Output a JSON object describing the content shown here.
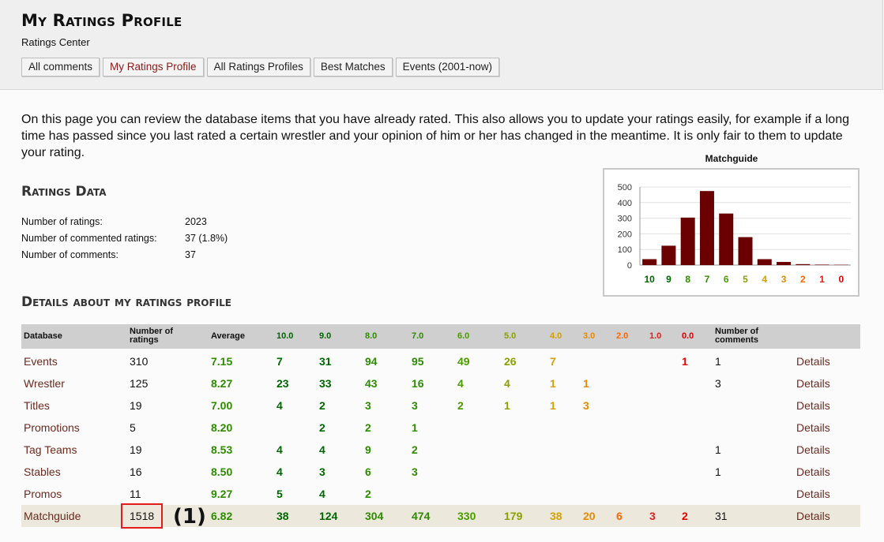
{
  "page": {
    "title": "My Ratings Profile",
    "subtitle": "Ratings Center",
    "tabs": [
      {
        "label": "All comments",
        "active": false
      },
      {
        "label": "My Ratings Profile",
        "active": true
      },
      {
        "label": "All Ratings Profiles",
        "active": false
      },
      {
        "label": "Best Matches",
        "active": false
      },
      {
        "label": "Events (2001-now)",
        "active": false
      }
    ]
  },
  "intro": "On this page you can review the database items that you have already rated. This also allows you to update your ratings easily, for example if a long time has passed since you last rated a certain wrestler and your opinion of him or her has changed in the meantime. It is only fair to them to update your rating.",
  "ratings_data": {
    "title": "Ratings Data",
    "rows": [
      {
        "label": "Number of ratings:",
        "value": "2023"
      },
      {
        "label": "Number of commented ratings:",
        "value": "37 (1.8%)"
      },
      {
        "label": "Number of comments:",
        "value": "37"
      }
    ]
  },
  "chart_data": {
    "type": "bar",
    "title": "Matchguide",
    "categories": [
      "10",
      "9",
      "8",
      "7",
      "6",
      "5",
      "4",
      "3",
      "2",
      "1",
      "0"
    ],
    "values": [
      38,
      124,
      304,
      474,
      330,
      179,
      38,
      20,
      6,
      3,
      2
    ],
    "category_colors": [
      "#006600",
      "#006600",
      "#2e8b00",
      "#2e8b00",
      "#4a9a00",
      "#8aa000",
      "#d4a000",
      "#e68a00",
      "#ff6600",
      "#e02020",
      "#e00000"
    ],
    "bar_color": "#6b0000",
    "ylim": [
      0,
      500
    ],
    "yticks": [
      0,
      100,
      200,
      300,
      400,
      500
    ],
    "grid": true,
    "xlabel": "",
    "ylabel": ""
  },
  "details": {
    "title": "Details about my ratings profile",
    "headers": {
      "database": "Database",
      "num_ratings": [
        "Number of",
        "ratings"
      ],
      "average": "Average",
      "scores": [
        "10.0",
        "9.0",
        "8.0",
        "7.0",
        "6.0",
        "5.0",
        "4.0",
        "3.0",
        "2.0",
        "1.0",
        "0.0"
      ],
      "num_comments": [
        "Number of",
        "comments"
      ]
    },
    "score_colors": [
      "#006600",
      "#006600",
      "#2e8b00",
      "#2e8b00",
      "#4a9a00",
      "#8aa000",
      "#d4a000",
      "#e68a00",
      "#ff6600",
      "#e02020",
      "#e00000"
    ],
    "avg_color": "#2e8b00",
    "details_label": "Details",
    "rows": [
      {
        "db": "Events",
        "num": "310",
        "avg": "7.15",
        "counts": [
          "7",
          "31",
          "94",
          "95",
          "49",
          "26",
          "7",
          "",
          "",
          "",
          "1"
        ],
        "comments": "1"
      },
      {
        "db": "Wrestler",
        "num": "125",
        "avg": "8.27",
        "counts": [
          "23",
          "33",
          "43",
          "16",
          "4",
          "4",
          "1",
          "1",
          "",
          "",
          ""
        ],
        "comments": "3"
      },
      {
        "db": "Titles",
        "num": "19",
        "avg": "7.00",
        "counts": [
          "4",
          "2",
          "3",
          "3",
          "2",
          "1",
          "1",
          "3",
          "",
          "",
          ""
        ],
        "comments": ""
      },
      {
        "db": "Promotions",
        "num": "5",
        "avg": "8.20",
        "counts": [
          "",
          "2",
          "2",
          "1",
          "",
          "",
          "",
          "",
          "",
          "",
          ""
        ],
        "comments": ""
      },
      {
        "db": "Tag Teams",
        "num": "19",
        "avg": "8.53",
        "counts": [
          "4",
          "4",
          "9",
          "2",
          "",
          "",
          "",
          "",
          "",
          "",
          ""
        ],
        "comments": "1"
      },
      {
        "db": "Stables",
        "num": "16",
        "avg": "8.50",
        "counts": [
          "4",
          "3",
          "6",
          "3",
          "",
          "",
          "",
          "",
          "",
          "",
          ""
        ],
        "comments": "1"
      },
      {
        "db": "Promos",
        "num": "11",
        "avg": "9.27",
        "counts": [
          "5",
          "4",
          "2",
          "",
          "",
          "",
          "",
          "",
          "",
          "",
          ""
        ],
        "comments": ""
      },
      {
        "db": "Matchguide",
        "num": "1518",
        "avg": "6.82",
        "counts": [
          "38",
          "124",
          "304",
          "474",
          "330",
          "179",
          "38",
          "20",
          "6",
          "3",
          "2"
        ],
        "comments": "31",
        "highlighted": true
      }
    ]
  },
  "annotation": "(1)"
}
